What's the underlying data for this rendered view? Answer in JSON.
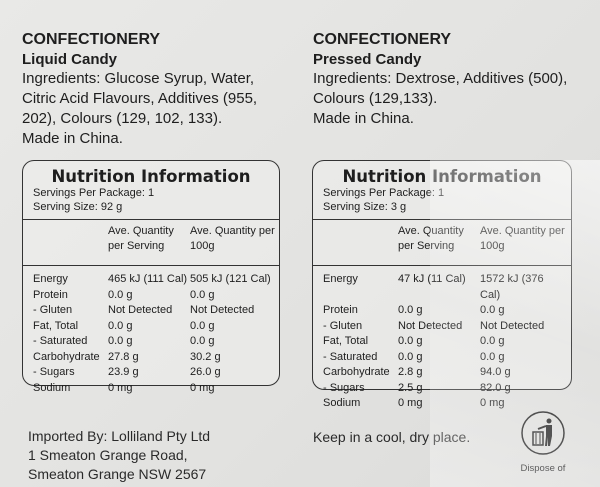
{
  "left": {
    "category": "CONFECTIONERY",
    "product": "Liquid Candy",
    "ingredients": "Ingredients: Glucose Syrup, Water, Citric Acid Flavours, Additives (955, 202), Colours (129, 102, 133).",
    "origin": "Made in China.",
    "panel": {
      "title": "Nutrition Information",
      "servings": "Servings Per Package: 1",
      "serving_size": "Serving Size: 92 g",
      "headers": [
        "",
        "Ave. Quantity per Serving",
        "Ave. Quantity per 100g"
      ],
      "rows": [
        [
          "Energy",
          "465 kJ (111 Cal)",
          "505 kJ (121 Cal)"
        ],
        [
          "Protein",
          "0.0 g",
          "0.0 g"
        ],
        [
          "- Gluten",
          "Not Detected",
          "Not Detected"
        ],
        [
          "Fat, Total",
          "0.0 g",
          "0.0 g"
        ],
        [
          "- Saturated",
          "0.0 g",
          "0.0 g"
        ],
        [
          "Carbohydrate",
          "27.8 g",
          "30.2 g"
        ],
        [
          "- Sugars",
          "23.9 g",
          "26.0 g"
        ],
        [
          "Sodium",
          "0 mg",
          "0 mg"
        ]
      ]
    }
  },
  "right": {
    "category": "CONFECTIONERY",
    "product": "Pressed Candy",
    "ingredients": "Ingredients: Dextrose, Additives (500), Colours (129,133).",
    "origin": "Made in China.",
    "panel": {
      "title": "Nutrition Information",
      "servings": "Servings Per Package: 1",
      "serving_size": "Serving Size: 3 g",
      "headers": [
        "",
        "Ave. Quantity per Serving",
        "Ave. Quantity per 100g"
      ],
      "rows": [
        [
          "Energy",
          "47 kJ (11 Cal)",
          "1572 kJ (376 Cal)"
        ],
        [
          "Protein",
          "0.0 g",
          "0.0 g"
        ],
        [
          "- Gluten",
          "Not Detected",
          "Not Detected"
        ],
        [
          "Fat, Total",
          "0.0 g",
          "0.0 g"
        ],
        [
          "- Saturated",
          "0.0 g",
          "0.0 g"
        ],
        [
          "Carbohydrate",
          "2.8 g",
          "94.0 g"
        ],
        [
          "- Sugars",
          "2.5 g",
          "82.0 g"
        ],
        [
          "Sodium",
          "0 mg",
          "0 mg"
        ]
      ]
    }
  },
  "footer": {
    "importer": [
      "Imported By: Lolliland Pty Ltd",
      "1 Smeaton Grange Road,",
      "Smeaton Grange NSW 2567"
    ],
    "storage": "Keep in a cool, dry place.",
    "dispose_icon": "tidyman-bin-icon",
    "dispose": "Dispose of"
  }
}
